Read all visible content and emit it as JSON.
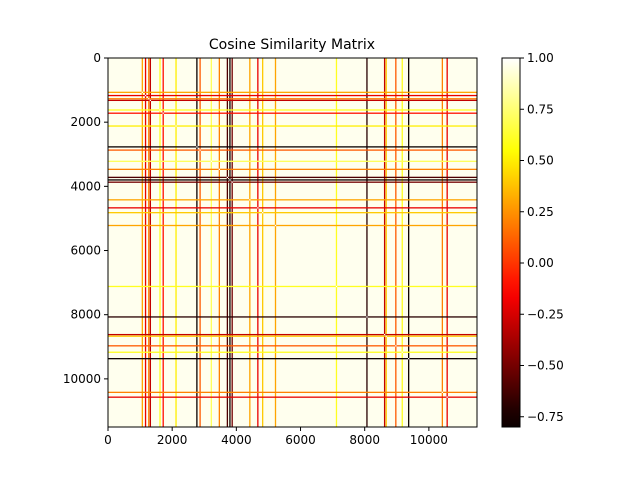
{
  "chart_data": {
    "type": "heatmap",
    "title": "Cosine Similarity Matrix",
    "xlabel": "",
    "ylabel": "",
    "matrix_size": 11500,
    "xlim": [
      0,
      11500
    ],
    "ylim": [
      11500,
      0
    ],
    "x_ticks": [
      0,
      2000,
      4000,
      6000,
      8000,
      10000
    ],
    "y_ticks": [
      0,
      2000,
      4000,
      6000,
      8000,
      10000
    ],
    "x_tick_labels": [
      "0",
      "2000",
      "4000",
      "6000",
      "8000",
      "10000"
    ],
    "y_tick_labels": [
      "0",
      "2000",
      "4000",
      "6000",
      "8000",
      "10000"
    ],
    "colormap": "hot",
    "color_range": [
      -0.8,
      1.0
    ],
    "colorbar_ticks": [
      1.0,
      0.75,
      0.5,
      0.25,
      0.0,
      -0.25,
      -0.5,
      -0.75
    ],
    "colorbar_tick_labels": [
      "1.00",
      "0.75",
      "0.50",
      "0.25",
      "0.00",
      "−0.25",
      "−0.50",
      "−0.75"
    ],
    "background_value": 0.97,
    "low_similarity_indices": [
      {
        "index": 1050,
        "value": 0.3
      },
      {
        "index": 1150,
        "value": -0.2
      },
      {
        "index": 1250,
        "value": 0.2
      },
      {
        "index": 1300,
        "value": -0.3
      },
      {
        "index": 1600,
        "value": 0.6
      },
      {
        "index": 1700,
        "value": -0.1
      },
      {
        "index": 2100,
        "value": 0.5
      },
      {
        "index": 2750,
        "value": -0.8
      },
      {
        "index": 2850,
        "value": 0.1
      },
      {
        "index": 3200,
        "value": 0.7
      },
      {
        "index": 3450,
        "value": 0.2
      },
      {
        "index": 3700,
        "value": -0.6
      },
      {
        "index": 3780,
        "value": -0.8
      },
      {
        "index": 3850,
        "value": -0.5
      },
      {
        "index": 4400,
        "value": 0.3
      },
      {
        "index": 4650,
        "value": -0.2
      },
      {
        "index": 4800,
        "value": 0.4
      },
      {
        "index": 5200,
        "value": 0.3
      },
      {
        "index": 7100,
        "value": 0.6
      },
      {
        "index": 8050,
        "value": -0.7
      },
      {
        "index": 8600,
        "value": -0.3
      },
      {
        "index": 8650,
        "value": 0.4
      },
      {
        "index": 8950,
        "value": 0.1
      },
      {
        "index": 9150,
        "value": 0.6
      },
      {
        "index": 9350,
        "value": -0.8
      },
      {
        "index": 10400,
        "value": 0.2
      },
      {
        "index": 10550,
        "value": -0.2
      }
    ]
  }
}
